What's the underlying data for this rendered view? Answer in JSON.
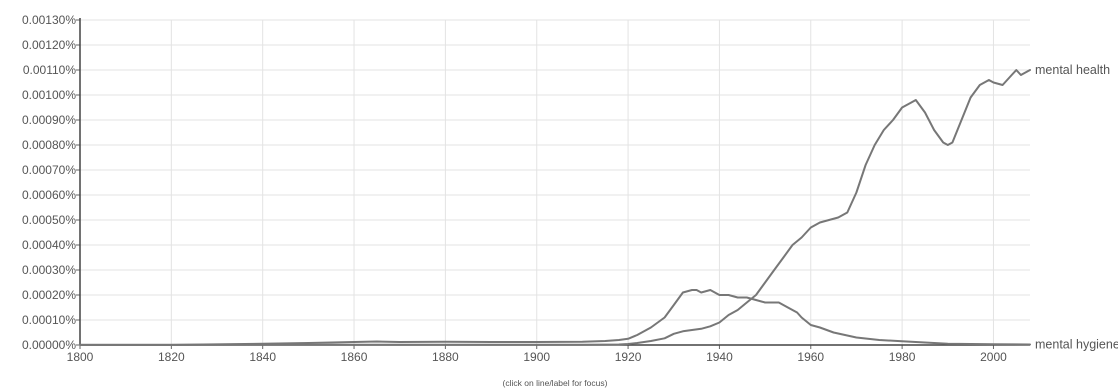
{
  "chart_data": {
    "type": "line",
    "title": "",
    "xlabel": "",
    "ylabel": "",
    "xlim": [
      1800,
      2008
    ],
    "ylim": [
      0,
      0.0013
    ],
    "grid": true,
    "x_ticks": [
      1800,
      1820,
      1840,
      1860,
      1880,
      1900,
      1920,
      1940,
      1960,
      1980,
      2000
    ],
    "y_ticks": [
      "0.00000%",
      "0.00010%",
      "0.00020%",
      "0.00030%",
      "0.00040%",
      "0.00050%",
      "0.00060%",
      "0.00070%",
      "0.00080%",
      "0.00090%",
      "0.00100%",
      "0.00110%",
      "0.00120%",
      "0.00130%"
    ],
    "line_color": "#777777",
    "grid_color": "#e3e3e3",
    "footnote": "(click on line/label for focus)",
    "series": [
      {
        "name": "mental health",
        "x": [
          1800,
          1820,
          1840,
          1860,
          1865,
          1880,
          1900,
          1910,
          1915,
          1918,
          1920,
          1922,
          1925,
          1928,
          1930,
          1932,
          1934,
          1936,
          1938,
          1940,
          1942,
          1944,
          1946,
          1948,
          1950,
          1952,
          1954,
          1956,
          1958,
          1960,
          1962,
          1964,
          1966,
          1968,
          1970,
          1972,
          1974,
          1976,
          1978,
          1980,
          1982,
          1983,
          1985,
          1987,
          1989,
          1990,
          1991,
          1993,
          1995,
          1997,
          1999,
          2000,
          2002,
          2004,
          2005,
          2006,
          2008
        ],
        "y": [
          2e-07,
          4e-07,
          8e-07,
          1e-06,
          1e-06,
          1e-06,
          1e-06,
          1e-06,
          1.5e-06,
          2e-06,
          4e-06,
          8e-06,
          1.6e-05,
          2.7e-05,
          4.5e-05,
          5.5e-05,
          6e-05,
          6.5e-05,
          7.5e-05,
          9e-05,
          0.00012,
          0.00014,
          0.00017,
          0.0002,
          0.00025,
          0.0003,
          0.00035,
          0.0004,
          0.00043,
          0.00047,
          0.00049,
          0.0005,
          0.00051,
          0.00053,
          0.00061,
          0.00072,
          0.0008,
          0.00086,
          0.0009,
          0.00095,
          0.00097,
          0.00098,
          0.00093,
          0.00086,
          0.00081,
          0.0008,
          0.00081,
          0.0009,
          0.00099,
          0.00104,
          0.00106,
          0.00105,
          0.00104,
          0.00108,
          0.0011,
          0.00108,
          0.0011
        ]
      },
      {
        "name": "mental hygiene",
        "x": [
          1800,
          1820,
          1840,
          1850,
          1860,
          1865,
          1870,
          1880,
          1890,
          1900,
          1910,
          1915,
          1918,
          1920,
          1922,
          1925,
          1928,
          1930,
          1932,
          1934,
          1935,
          1936,
          1938,
          1940,
          1942,
          1944,
          1946,
          1948,
          1950,
          1952,
          1953,
          1955,
          1957,
          1958,
          1960,
          1962,
          1965,
          1970,
          1975,
          1980,
          1985,
          1990,
          2000,
          2008
        ],
        "y": [
          2e-07,
          5e-07,
          5e-06,
          8e-06,
          1.2e-05,
          1.4e-05,
          1.2e-05,
          1.3e-05,
          1.2e-05,
          1.2e-05,
          1.3e-05,
          1.6e-05,
          2e-05,
          2.5e-05,
          4e-05,
          7e-05,
          0.00011,
          0.00016,
          0.00021,
          0.00022,
          0.00022,
          0.00021,
          0.00022,
          0.0002,
          0.0002,
          0.00019,
          0.00019,
          0.00018,
          0.00017,
          0.00017,
          0.00017,
          0.00015,
          0.00013,
          0.00011,
          8e-05,
          7e-05,
          5e-05,
          3e-05,
          2e-05,
          1.5e-05,
          1e-05,
          5e-06,
          3e-06,
          2e-06
        ]
      }
    ]
  }
}
